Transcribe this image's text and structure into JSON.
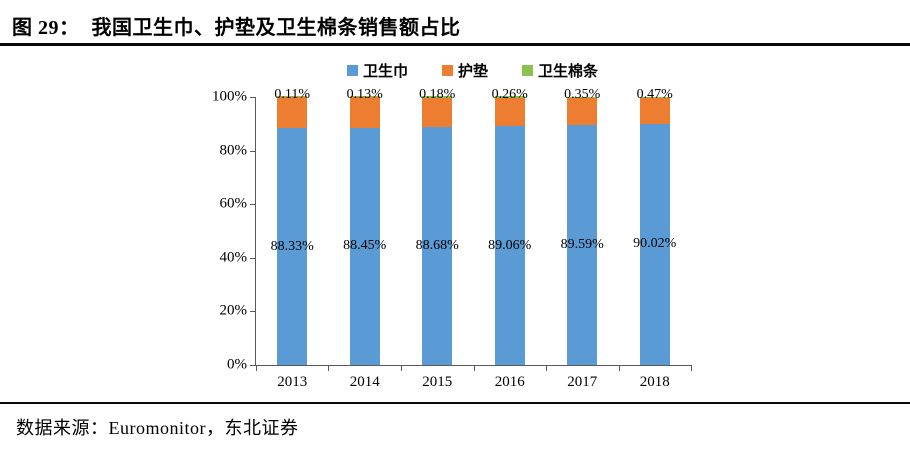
{
  "header": {
    "figure_label": "图 29：",
    "title": "我国卫生巾、护垫及卫生棉条销售额占比"
  },
  "legend": [
    {
      "label": "卫生巾",
      "color": "#5B9BD5"
    },
    {
      "label": "护垫",
      "color": "#ED7D31"
    },
    {
      "label": "卫生棉条",
      "color": "#8CC152"
    }
  ],
  "chart_data": {
    "type": "bar",
    "stacked": true,
    "title": "我国卫生巾、护垫及卫生棉条销售额占比",
    "categories": [
      "2013",
      "2014",
      "2015",
      "2016",
      "2017",
      "2018"
    ],
    "series": [
      {
        "name": "卫生巾",
        "key": "sanitary-napkin",
        "color": "#5B9BD5",
        "values": [
          88.33,
          88.45,
          88.68,
          89.06,
          89.59,
          90.02
        ],
        "labels": [
          "88.33%",
          "88.45%",
          "88.68%",
          "89.06%",
          "89.59%",
          "90.02%"
        ],
        "label_position": "center"
      },
      {
        "name": "护垫",
        "key": "pantiliner",
        "color": "#ED7D31",
        "values": [
          11.56,
          11.42,
          11.14,
          10.68,
          10.06,
          9.51
        ],
        "labels": null,
        "label_position": "none"
      },
      {
        "name": "卫生棉条",
        "key": "tampon",
        "color": "#8CC152",
        "values": [
          0.11,
          0.13,
          0.18,
          0.26,
          0.35,
          0.47
        ],
        "labels": [
          "0.11%",
          "0.13%",
          "0.18%",
          "0.26%",
          "0.35%",
          "0.47%"
        ],
        "label_position": "above"
      }
    ],
    "yticks": [
      "0%",
      "20%",
      "40%",
      "60%",
      "80%",
      "100%"
    ],
    "ylim": [
      0,
      100
    ],
    "xlabel": "",
    "ylabel": "",
    "legend_position": "top",
    "gridlines": false
  },
  "footer": {
    "source_text": "数据来源：Euromonitor，东北证券"
  }
}
